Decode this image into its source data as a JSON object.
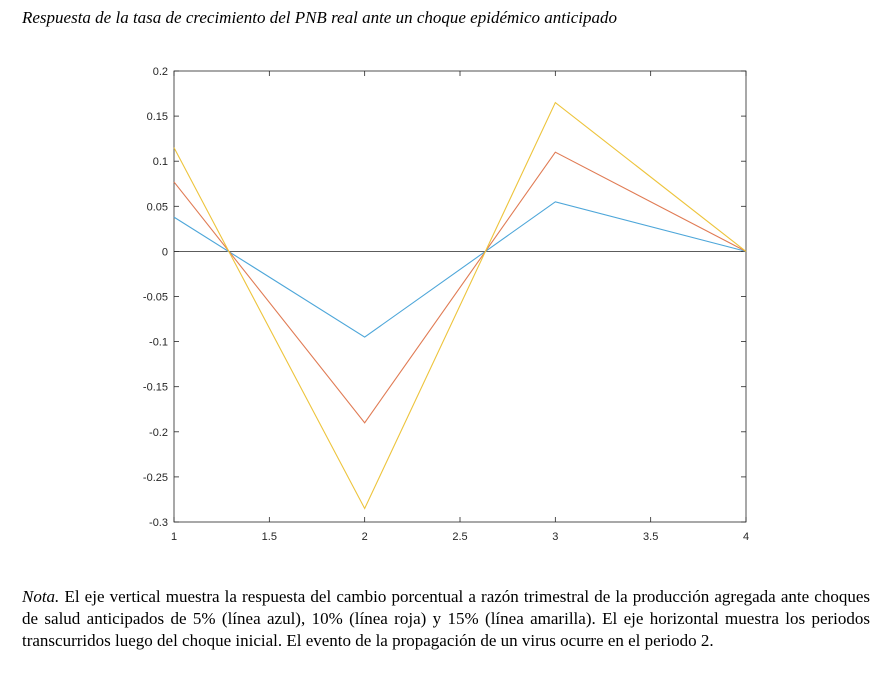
{
  "page": {
    "title": "Respuesta de la tasa de crecimiento del PNB real ante un choque epidémico anticipado",
    "note_label": "Nota.",
    "note_text": " El eje vertical muestra la respuesta del cambio porcentual a razón trimestral de la producción agregada ante choques de salud anticipados de 5% (línea azul), 10% (línea roja) y 15% (línea amarilla). El eje horizontal muestra los periodos transcurridos luego del choque inicial. El evento de la propagación de un virus ocurre en el periodo 2."
  },
  "chart_data": {
    "type": "line",
    "title": "",
    "xlabel": "",
    "ylabel": "",
    "xlim": [
      1,
      4
    ],
    "ylim": [
      -0.3,
      0.2
    ],
    "xticks": [
      1,
      1.5,
      2,
      2.5,
      3,
      3.5,
      4
    ],
    "xtick_labels": [
      "1",
      "1.5",
      "2",
      "2.5",
      "3",
      "3.5",
      "4"
    ],
    "yticks": [
      0.2,
      0.15,
      0.1,
      0.05,
      0,
      -0.05,
      -0.1,
      -0.15,
      -0.2,
      -0.25,
      -0.3
    ],
    "ytick_labels": [
      "0.2",
      "0.15",
      "0.1",
      "0.05",
      "0",
      "-0.05",
      "-0.1",
      "-0.15",
      "-0.2",
      "-0.25",
      "-0.3"
    ],
    "grid": false,
    "zero_line": true,
    "x": [
      1,
      2,
      3,
      4
    ],
    "series": [
      {
        "values": [
          0.038,
          -0.095,
          0.055,
          0.0
        ],
        "color": "#4DA6D9"
      },
      {
        "values": [
          0.077,
          -0.19,
          0.11,
          0.0
        ],
        "color": "#E07B54"
      },
      {
        "values": [
          0.115,
          -0.285,
          0.165,
          0.0
        ],
        "color": "#EDC43C"
      }
    ]
  }
}
